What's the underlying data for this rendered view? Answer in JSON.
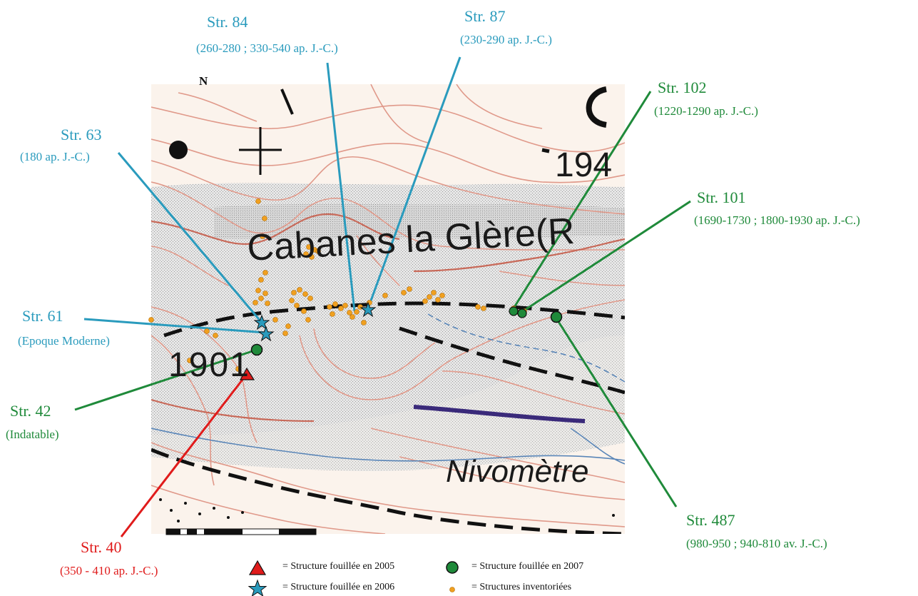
{
  "map": {
    "north_label": "N",
    "place_name": "Cabanes la Glère(R",
    "elevation_1": "1901",
    "elevation_2": "194",
    "feature_label": "Nivomètre",
    "symbol_colors": {
      "red": "#e01b1b",
      "green": "#1f8a3a",
      "blue": "#2a9bbd",
      "orange": "#f0a020"
    }
  },
  "labels": {
    "str84": {
      "name": "Str. 84",
      "date": "(260-280 ; 330-540 ap. J.-C.)"
    },
    "str87": {
      "name": "Str. 87",
      "date": "(230-290 ap. J.-C.)"
    },
    "str63": {
      "name": "Str. 63",
      "date": "(180 ap. J.-C.)"
    },
    "str102": {
      "name": "Str. 102",
      "date": "(1220-1290 ap. J.-C.)"
    },
    "str101": {
      "name": "Str. 101",
      "date": "(1690-1730 ; 1800-1930 ap. J.-C.)"
    },
    "str61": {
      "name": "Str. 61",
      "date": "(Epoque Moderne)"
    },
    "str42": {
      "name": "Str. 42",
      "date": "(Indatable)"
    },
    "str487": {
      "name": "Str. 487",
      "date": "(980-950 ; 940-810 av. J.-C.)"
    },
    "str40": {
      "name": "Str. 40",
      "date": "(350 - 410 ap. J.-C.)"
    }
  },
  "legend": {
    "triangle": "= Structure fouillée en 2005",
    "star": "= Structure fouillée en 2006",
    "circle": "= Structure fouillée en 2007",
    "dot": "= Structures inventoriées"
  }
}
